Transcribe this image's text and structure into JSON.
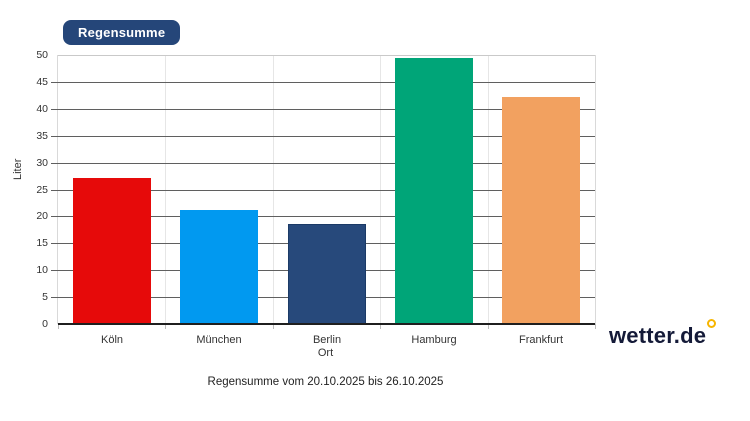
{
  "badge": {
    "label": "Regensumme"
  },
  "caption": "Regensumme vom 20.10.2025 bis 26.10.2025",
  "logo": {
    "text": "wetter.de",
    "ring_color": "#f7b500"
  },
  "chart_data": {
    "type": "bar",
    "title": "Regensumme",
    "categories": [
      "Köln",
      "München",
      "Berlin",
      "Hamburg",
      "Frankfurt"
    ],
    "values": [
      27.2,
      21.2,
      18.6,
      49.4,
      42.2
    ],
    "bar_colors": [
      "#e60a0a",
      "#0199f0",
      "#27497b",
      "#00a578",
      "#f2a160"
    ],
    "bar_border_colors": [
      null,
      null,
      "#1b3a66",
      null,
      null
    ],
    "xlabel": "Ort",
    "ylabel": "Liter",
    "ylim": [
      0,
      50
    ],
    "ytick_step": 5,
    "grid": true,
    "legend": "none"
  }
}
